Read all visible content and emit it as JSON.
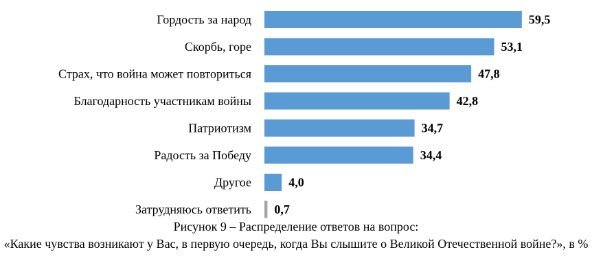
{
  "chart_data": {
    "type": "bar",
    "orientation": "horizontal",
    "categories": [
      "Гордость за народ",
      "Скорбь, горе",
      "Страх, что война может повториться",
      "Благодарность участникам войны",
      "Патриотизм",
      "Радость за Победу",
      "Другое",
      "Затрудняюсь ответить"
    ],
    "values": [
      59.5,
      53.1,
      47.8,
      42.8,
      34.7,
      34.4,
      4.0,
      0.7
    ],
    "value_labels": [
      "59,5",
      "53,1",
      "47,8",
      "42,8",
      "34,7",
      "34,4",
      "4,0",
      "0,7"
    ],
    "bar_colors": [
      "#5b9bd5",
      "#5b9bd5",
      "#5b9bd5",
      "#5b9bd5",
      "#5b9bd5",
      "#5b9bd5",
      "#5b9bd5",
      "#a5a5a5"
    ],
    "xlim": [
      0,
      65
    ],
    "grid": false,
    "legend": "none"
  },
  "caption": {
    "line1": "Рисунок 9 – Распределение ответов на вопрос:",
    "line2": "«Какие чувства возникают у Вас, в первую очередь, когда Вы слышите о Великой Отечественной войне?», в %"
  }
}
